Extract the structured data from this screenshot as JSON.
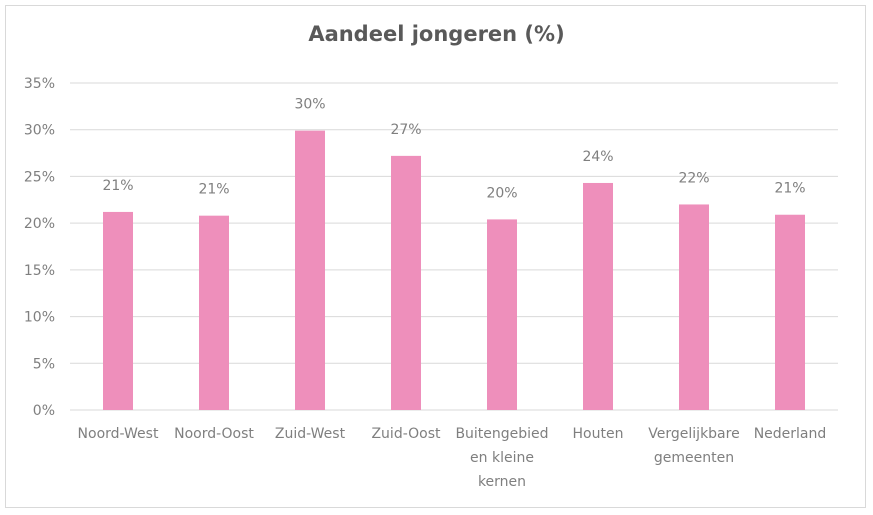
{
  "chart_data": {
    "type": "bar",
    "title": "Aandeel jongeren (%)",
    "xlabel": "",
    "ylabel": "",
    "categories": [
      [
        "Noord-West"
      ],
      [
        "Noord-Oost"
      ],
      [
        "Zuid-West"
      ],
      [
        "Zuid-Oost"
      ],
      [
        "Buitengebied",
        "en kleine",
        "kernen"
      ],
      [
        "Houten"
      ],
      [
        "Vergelijkbare",
        "gemeenten"
      ],
      [
        "Nederland"
      ]
    ],
    "values": [
      21.2,
      20.8,
      29.9,
      27.2,
      20.4,
      24.3,
      22.0,
      20.9
    ],
    "data_labels": [
      "21%",
      "21%",
      "30%",
      "27%",
      "20%",
      "24%",
      "22%",
      "21%"
    ],
    "ylim": [
      0,
      35
    ],
    "yticks": [
      0,
      5,
      10,
      15,
      20,
      25,
      30,
      35
    ],
    "ytick_labels": [
      "0%",
      "5%",
      "10%",
      "15%",
      "20%",
      "25%",
      "30%",
      "35%"
    ],
    "grid": true,
    "legend": "none",
    "colors": {
      "bar": "#ee8fbb",
      "grid": "#d9d9d9",
      "text": "#7f7f7f",
      "title": "#595959"
    }
  }
}
